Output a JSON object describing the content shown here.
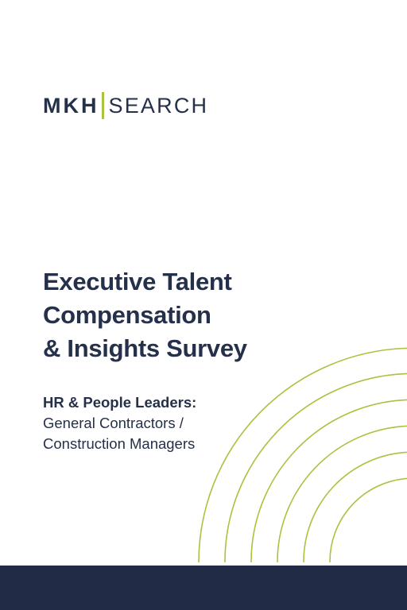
{
  "logo": {
    "first_word": "MKH",
    "second_word": "SEARCH"
  },
  "title": {
    "line1": "Executive Talent",
    "line2": "Compensation",
    "line3": "& Insights Survey"
  },
  "subtitle": {
    "lead": "HR & People Leaders:",
    "line1": "General Contractors /",
    "line2": "Construction Managers"
  },
  "colors": {
    "navy": "#25304a",
    "footer_navy": "#222b46",
    "accent_green": "#a9c23f",
    "background": "#ffffff"
  }
}
